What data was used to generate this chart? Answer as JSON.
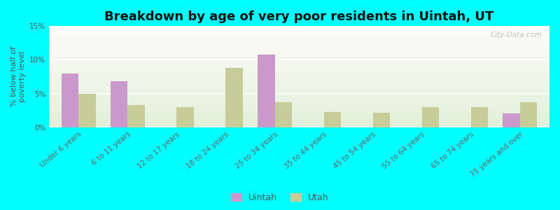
{
  "title": "Breakdown by age of very poor residents in Uintah, UT",
  "ylabel": "% below half of\npoverty level",
  "categories": [
    "Under 6 years",
    "6 to 11 years",
    "12 to 17 years",
    "18 to 24 years",
    "25 to 34 years",
    "35 to 44 years",
    "45 to 54 years",
    "55 to 64 years",
    "65 to 74 years",
    "75 years and over"
  ],
  "uintah_values": [
    8.0,
    6.8,
    0,
    0,
    10.8,
    0,
    0,
    0,
    0,
    2.0
  ],
  "utah_values": [
    5.0,
    3.3,
    3.0,
    8.8,
    3.7,
    2.2,
    2.1,
    3.0,
    3.0,
    3.7
  ],
  "uintah_color": "#cc99cc",
  "utah_color": "#c8cc99",
  "background_outer": "#00ffff",
  "ylim": [
    0,
    15
  ],
  "yticks": [
    0,
    5,
    10,
    15
  ],
  "ytick_labels": [
    "0%",
    "5%",
    "10%",
    "15%"
  ],
  "bar_width": 0.35,
  "title_fontsize": 13,
  "axis_fontsize": 8,
  "tick_fontsize": 7.5,
  "legend_fontsize": 9,
  "watermark": "City-Data.com"
}
